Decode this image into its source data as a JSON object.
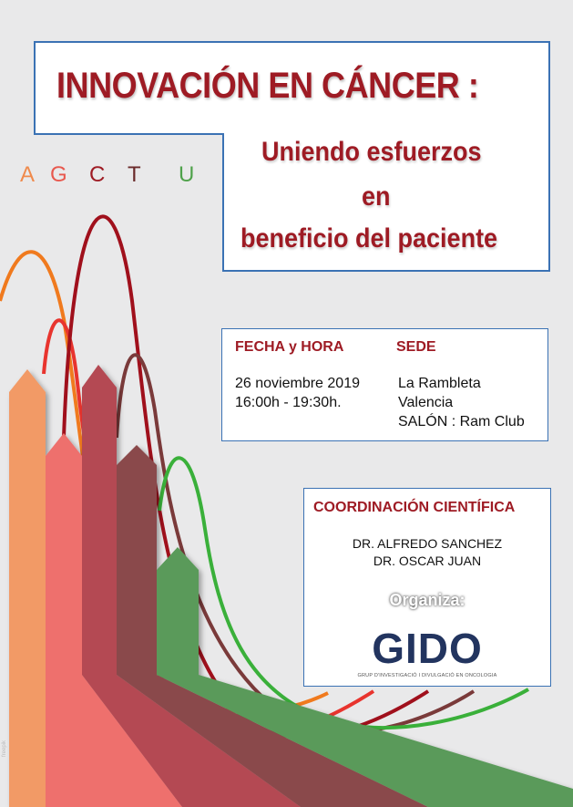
{
  "title": "INNOVACIÓN EN CÁNCER :",
  "subtitle": {
    "line1": "Uniendo esfuerzos",
    "line2": "en",
    "line3": "beneficio del paciente"
  },
  "bases": [
    "A",
    "G",
    "C",
    "T",
    "U"
  ],
  "colors": {
    "dark_red": "#9e1b24",
    "blue_border": "#3b72b4",
    "orange": "#ef8a4c",
    "salmon": "#e8584e",
    "maroon": "#9e1b24",
    "brown": "#6a2a2a",
    "green": "#4fa24b"
  },
  "event": {
    "fecha_label": "FECHA y HORA",
    "sede_label": "SEDE",
    "date": "26 noviembre 2019",
    "time": "16:00h - 19:30h.",
    "venue_1": "La Rambleta",
    "venue_2": "Valencia",
    "venue_3": "SALÓN : Ram Club"
  },
  "coordination": {
    "title": "COORDINACIÓN CIENTÍFICA",
    "doctors": [
      "DR. ALFREDO SANCHEZ",
      "DR. OSCAR JUAN"
    ],
    "organiza_label": "Organiza:",
    "org_name": "GIDO",
    "org_tagline": "GRUP D'INVESTIGACIÓ I DIVULGACIÓ EN ONCOLOGIA"
  },
  "credit": "freepik"
}
